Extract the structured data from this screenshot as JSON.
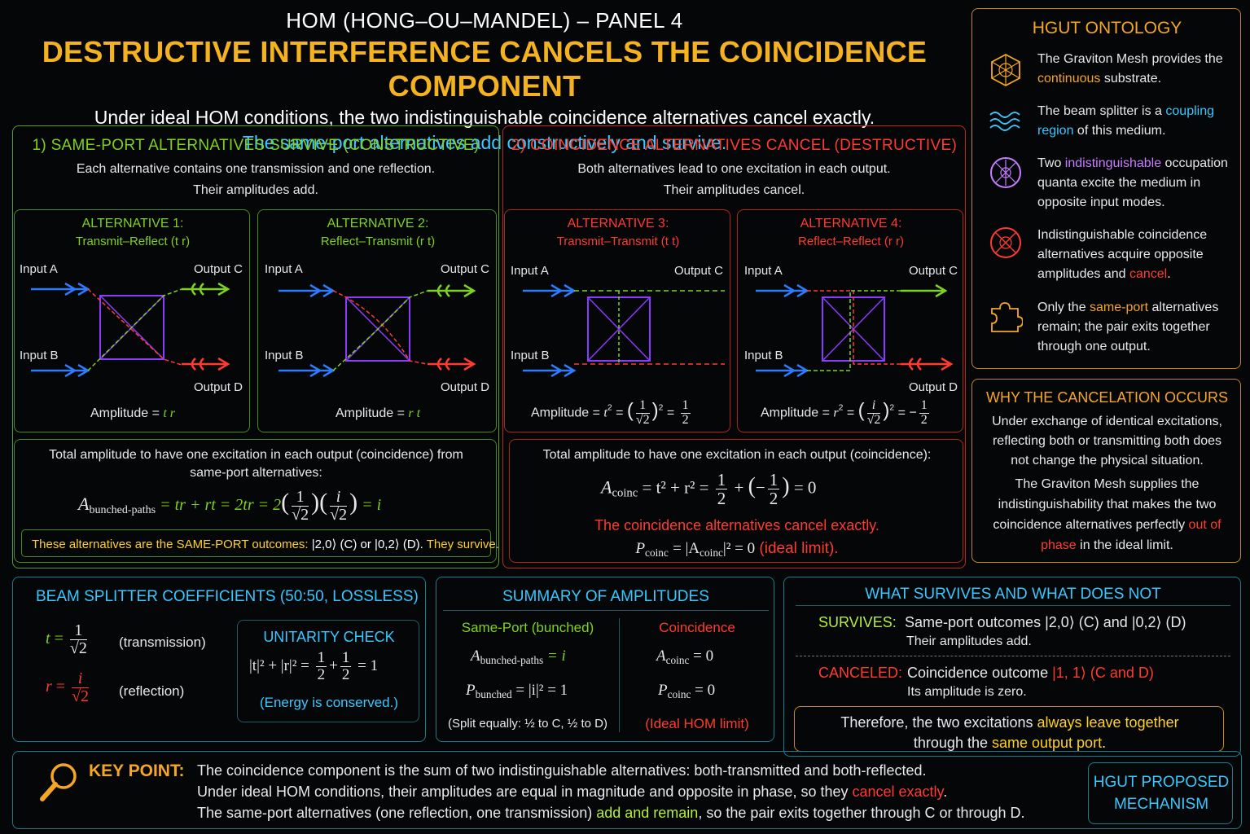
{
  "header": {
    "line1": "HOM (HONG–OU–MANDEL) – PANEL 4",
    "line2": "DESTRUCTIVE INTERFERENCE CANCELS THE COINCIDENCE COMPONENT",
    "line3": "Under ideal HOM conditions, the two indistinguishable coincidence alternatives cancel exactly.",
    "line4": "The same-port alternatives add constructively and survive."
  },
  "section1": {
    "title": "1) SAME-PORT ALTERNATIVES SURVIVE (CONSTRUCTIVE)",
    "desc1": "Each alternative contains one transmission and one reflection.",
    "desc2": "Their amplitudes add."
  },
  "section2": {
    "title": "2) COINCIDENCE ALTERNATIVES CANCEL (DESTRUCTIVE)",
    "desc1": "Both alternatives lead to one excitation in each output.",
    "desc2": "Their amplitudes cancel."
  },
  "ports": {
    "in_a": "Input A",
    "in_b": "Input B",
    "out_c": "Output C",
    "out_d": "Output D"
  },
  "alternatives": [
    {
      "title": "ALTERNATIVE 1:",
      "subtitle": "Transmit–Reflect (t r)",
      "amp_label": "Amplitude =",
      "amp_value": "t r"
    },
    {
      "title": "ALTERNATIVE 2:",
      "subtitle": "Reflect–Transmit (r t)",
      "amp_label": "Amplitude =",
      "amp_value": "r t"
    },
    {
      "title": "ALTERNATIVE 3:",
      "subtitle": "Transmit–Transmit (t t)",
      "amp_label": "Amplitude =",
      "amp_var": "t",
      "amp_pow": "2",
      "amp_frac_num": "1",
      "amp_frac_den": "√2",
      "amp_result_num": "1",
      "amp_result_den": "2"
    },
    {
      "title": "ALTERNATIVE 4:",
      "subtitle": "Reflect–Reflect (r r)",
      "amp_label": "Amplitude =",
      "amp_var": "r",
      "amp_pow": "2",
      "amp_frac_num": "i",
      "amp_frac_den": "√2",
      "amp_result_num": "1",
      "amp_result_den": "2",
      "amp_result_sign": "−"
    }
  ],
  "total_bunched": {
    "text1": "Total amplitude to have one excitation in each output (coincidence) from",
    "text2": "same-port alternatives:",
    "A": "A",
    "A_sub": "bunched-paths",
    "eq_terms": "= tr + rt = 2tr = 2",
    "f1_num": "1",
    "f1_den": "√2",
    "f2_num": "i",
    "f2_den": "√2",
    "eq_result": "= i",
    "note_prefix": "These alternatives are the SAME-PORT outcomes: ",
    "note_k1": "|2,0⟩",
    "note_c": " (C) or ",
    "note_k2": "|0,2⟩",
    "note_d": " (D).",
    "note_suffix": " They survive."
  },
  "total_coinc": {
    "text": "Total amplitude to have one excitation in each output (coincidence):",
    "A": "A",
    "A_sub": "coinc",
    "eq_terms": "= t² + r² =",
    "h_num": "1",
    "h_den": "2",
    "plus": "+",
    "neg": "−",
    "eq_result": "= 0",
    "cancel_text": "The coincidence alternatives cancel exactly.",
    "P": "P",
    "P_sub": "coinc",
    "P_eq": "= |A",
    "P_eq2": "|² = 0",
    "ideal": "(ideal limit)."
  },
  "ontology": {
    "title": "HGUT ONTOLOGY",
    "items": [
      {
        "pre": "The Graviton Mesh provides the ",
        "hl": "continuous",
        "post": " substrate.",
        "icon": "mesh-icon"
      },
      {
        "pre": "The beam splitter is a ",
        "hl": "coupling region",
        "post": " of this medium.",
        "icon": "waves-icon"
      },
      {
        "pre": "Two ",
        "hl": "indistinguishable",
        "post": " occupation quanta excite the medium in opposite input modes.",
        "icon": "quanta-icon"
      },
      {
        "pre": "Indistinguishable coincidence alternatives acquire opposite amplitudes and ",
        "hl": "cancel",
        "post": ".",
        "icon": "cancel-icon"
      },
      {
        "pre": "Only the ",
        "hl": "same-port",
        "post": " alternatives remain; the pair exits together through one output.",
        "icon": "puzzle-icon"
      }
    ]
  },
  "why": {
    "title": "WHY THE CANCELATION OCCURS",
    "p1": "Under exchange of identical excitations, reflecting both or transmitting both does not change the physical situation.",
    "p2_pre": "The Graviton Mesh supplies the indistinguishability that makes the two coincidence alternatives perfectly ",
    "p2_hl": "out of phase",
    "p2_post": " in the ideal limit."
  },
  "coefficients": {
    "title": "BEAM SPLITTER COEFFICIENTS (50:50, LOSSLESS)",
    "t_var": "t",
    "t_num": "1",
    "t_den": "√2",
    "t_label": "(transmission)",
    "r_var": "r",
    "r_num": "i",
    "r_den": "√2",
    "r_label": "(reflection)",
    "unitarity_title": "UNITARITY CHECK",
    "unitarity_lhs": "|t|² + |r|² =",
    "unitarity_rhs": "= 1",
    "half_num": "1",
    "half_den": "2",
    "energy": "(Energy is conserved.)"
  },
  "summary": {
    "title": "SUMMARY OF AMPLITUDES",
    "col1": "Same-Port (bunched)",
    "col2": "Coincidence",
    "A_b": "A",
    "A_b_sub": "bunched-paths",
    "A_b_val": "= i",
    "P_b": "P",
    "P_b_sub": "bunched",
    "P_b_val": "= |i|² = 1",
    "split": "(Split equally: ½ to C, ½ to D)",
    "A_c": "A",
    "A_c_sub": "coinc",
    "A_c_val": "= 0",
    "P_c": "P",
    "P_c_sub": "coinc",
    "P_c_val": "= 0",
    "hom": "(Ideal HOM limit)"
  },
  "survives": {
    "title": "WHAT SURVIVES AND WHAT DOES NOT",
    "s_label": "SURVIVES:",
    "s_text": "Same-port outcomes |2,0⟩ (C) and |0,2⟩ (D)",
    "s_sub": "Their amplitudes add.",
    "c_label": "CANCELED:",
    "c_text": "Coincidence outcome",
    "c_hl": "|1, 1⟩ (C and D)",
    "c_sub": "Its amplitude is zero.",
    "therefore_pre": "Therefore, the two excitations ",
    "therefore_hl1": "always leave together",
    "therefore_mid": "through the ",
    "therefore_hl2": "same output port",
    "therefore_end": "."
  },
  "keypoint": {
    "label": "KEY POINT:",
    "l1": "The coincidence component is the sum of two indistinguishable alternatives: both-transmitted and both-reflected.",
    "l2_pre": "Under ideal HOM conditions, their amplitudes are equal in magnitude and opposite in phase, so they ",
    "l2_hl": "cancel exactly",
    "l2_post": ".",
    "l3_pre": "The same-port alternatives (one reflection, one transmission) ",
    "l3_hl": "add and remain",
    "l3_post": ", so the pair exits together through C or through D.",
    "badge1": "HGUT PROPOSED",
    "badge2": "MECHANISM"
  }
}
